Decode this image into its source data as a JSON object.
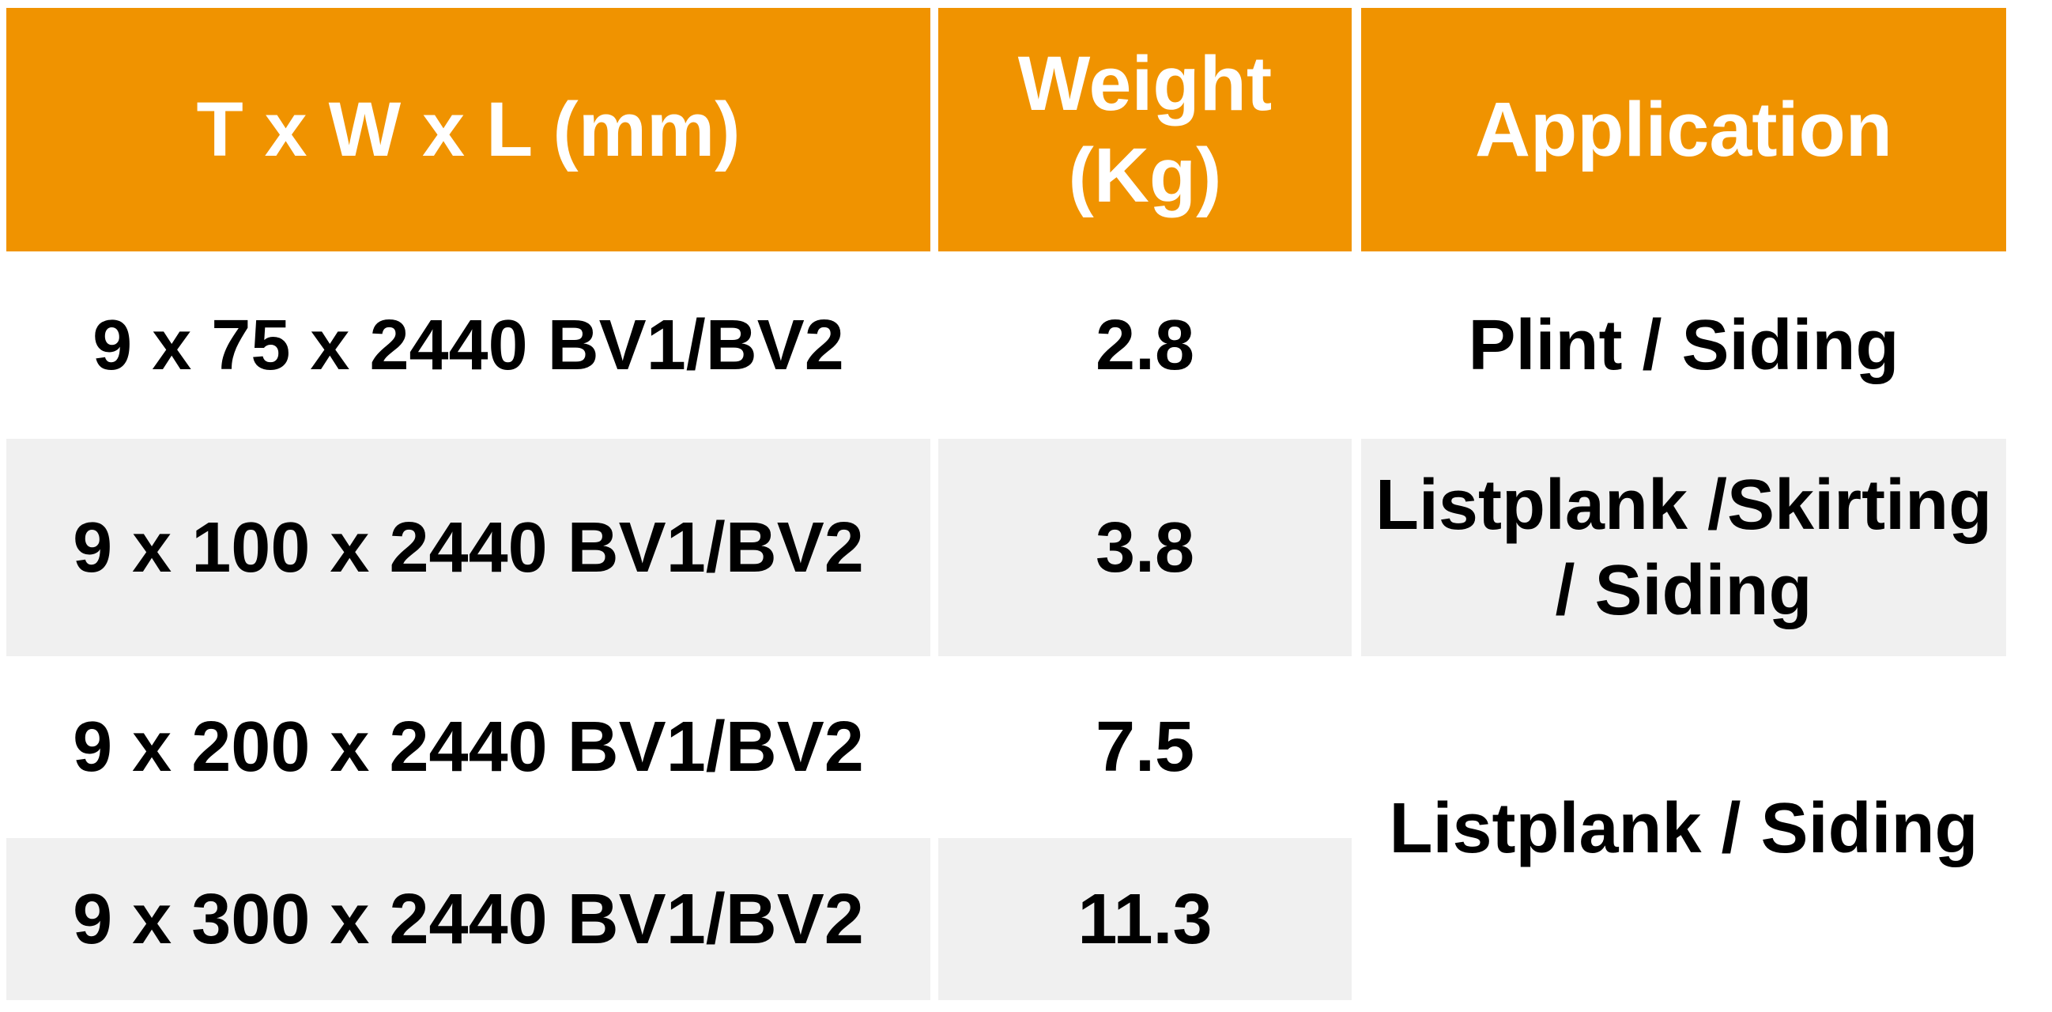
{
  "colors": {
    "page_bg": "#FFFFFF",
    "header_bg": "#F09300",
    "header_text": "#FFFFFF",
    "alt_row_bg": "#F0F0F0",
    "body_text": "#000000",
    "divider": "#FFFFFF"
  },
  "table": {
    "headers": [
      {
        "id": "dimensions",
        "lines": [
          "T x W x L (mm)"
        ]
      },
      {
        "id": "weight",
        "lines": [
          "Weight",
          "(Kg)"
        ]
      },
      {
        "id": "application",
        "lines": [
          "Application"
        ]
      }
    ],
    "rows": [
      {
        "size": "9 x 75 x 2440 BV1/BV2",
        "weight": "2.8",
        "application_lines": [
          "Plint / Siding"
        ]
      },
      {
        "size": "9 x 100 x 2440 BV1/BV2",
        "weight": "3.8",
        "application_lines": [
          "Listplank /Skirting",
          "/ Siding"
        ]
      },
      {
        "size": "9 x 200 x 2440 BV1/BV2",
        "weight": "7.5"
      },
      {
        "size": "9 x 300 x 2440 BV1/BV2",
        "weight": "11.3"
      }
    ],
    "merged_application": {
      "label": "Listplank / Siding",
      "spans_rows": [
        3,
        4
      ]
    }
  },
  "chart_data": {
    "type": "table",
    "columns": [
      "T x W x L (mm)",
      "Weight (Kg)",
      "Application"
    ],
    "rows": [
      [
        "9 x 75 x 2440 BV1/BV2",
        "2.8",
        "Plint / Siding"
      ],
      [
        "9 x 100 x 2440 BV1/BV2",
        "3.8",
        "Listplank /Skirting / Siding"
      ],
      [
        "9 x 200 x 2440 BV1/BV2",
        "7.5",
        "Listplank / Siding"
      ],
      [
        "9 x 300 x 2440 BV1/BV2",
        "11.3",
        "Listplank / Siding"
      ]
    ]
  }
}
